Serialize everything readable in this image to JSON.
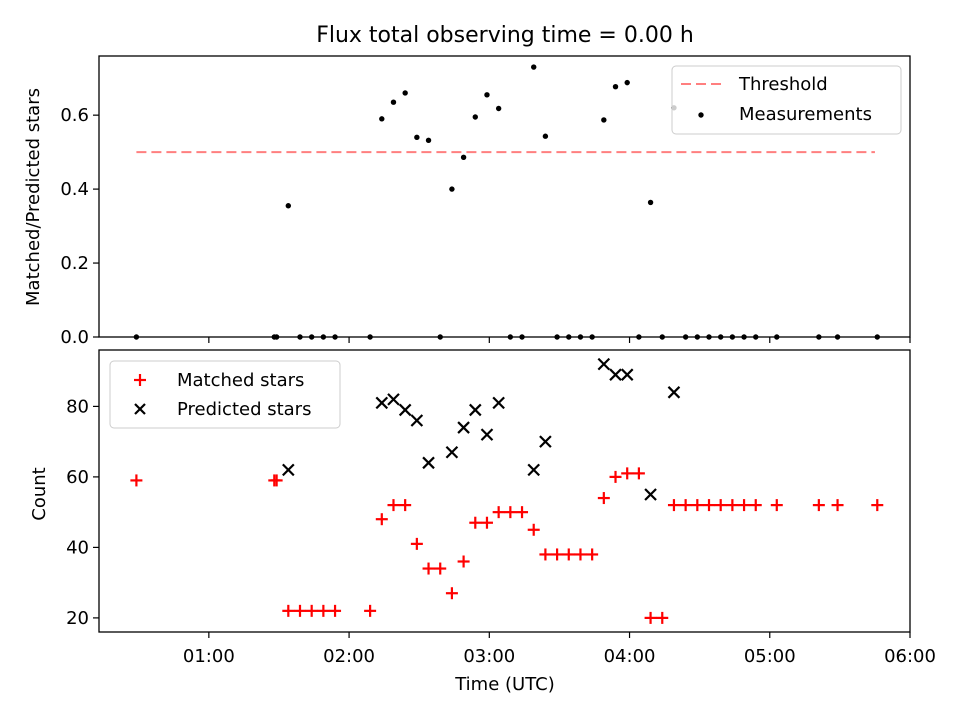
{
  "chart_data": [
    {
      "type": "scatter",
      "title": "Flux total observing time = 0.00 h",
      "ylabel": "Matched/Predicted stars",
      "xlabel": "",
      "ylim": [
        0,
        0.76
      ],
      "yticks": [
        "0.0",
        "0.2",
        "0.4",
        "0.6"
      ],
      "legend": {
        "placement": "top-right",
        "entries": [
          "Threshold",
          "Measurements"
        ]
      },
      "threshold": {
        "name": "Threshold",
        "y": 0.5,
        "x_start": "00:29",
        "x_end": "05:45",
        "color": "#ff7f7f"
      },
      "series": [
        {
          "name": "Measurements",
          "color": "#000000",
          "marker": "dot",
          "points": [
            [
              "00:29",
              0
            ],
            [
              "01:28",
              0
            ],
            [
              "01:29",
              0
            ],
            [
              "01:34",
              0.355
            ],
            [
              "01:39",
              0
            ],
            [
              "01:44",
              0
            ],
            [
              "01:49",
              0
            ],
            [
              "01:54",
              0
            ],
            [
              "02:09",
              0
            ],
            [
              "02:14",
              0.59
            ],
            [
              "02:19",
              0.635
            ],
            [
              "02:24",
              0.66
            ],
            [
              "02:29",
              0.54
            ],
            [
              "02:34",
              0.532
            ],
            [
              "02:39",
              0
            ],
            [
              "02:44",
              0.4
            ],
            [
              "02:49",
              0.486
            ],
            [
              "02:54",
              0.595
            ],
            [
              "02:59",
              0.655
            ],
            [
              "03:04",
              0.618
            ],
            [
              "03:09",
              0
            ],
            [
              "03:14",
              0
            ],
            [
              "03:19",
              0.73
            ],
            [
              "03:24",
              0.543
            ],
            [
              "03:29",
              0
            ],
            [
              "03:34",
              0
            ],
            [
              "03:39",
              0
            ],
            [
              "03:44",
              0
            ],
            [
              "03:49",
              0.587
            ],
            [
              "03:54",
              0.677
            ],
            [
              "03:59",
              0.688
            ],
            [
              "04:04",
              0
            ],
            [
              "04:09",
              0.364
            ],
            [
              "04:14",
              0
            ],
            [
              "04:19",
              0.62
            ],
            [
              "04:24",
              0
            ],
            [
              "04:29",
              0
            ],
            [
              "04:34",
              0
            ],
            [
              "04:39",
              0
            ],
            [
              "04:44",
              0
            ],
            [
              "04:49",
              0
            ],
            [
              "04:54",
              0
            ],
            [
              "05:03",
              0
            ],
            [
              "05:21",
              0
            ],
            [
              "05:29",
              0
            ],
            [
              "05:46",
              0
            ]
          ]
        }
      ]
    },
    {
      "type": "scatter",
      "title": "",
      "xlabel": "Time (UTC)",
      "ylabel": "Count",
      "xlim": [
        "00:13",
        "06:00"
      ],
      "xticks": [
        "01:00",
        "02:00",
        "03:00",
        "04:00",
        "05:00",
        "06:00"
      ],
      "ylim": [
        16,
        96
      ],
      "yticks": [
        "20",
        "40",
        "60",
        "80"
      ],
      "legend": {
        "placement": "top-left",
        "entries": [
          "Matched stars",
          "Predicted stars"
        ]
      },
      "series": [
        {
          "name": "Matched stars",
          "color": "#ff0000",
          "marker": "plus",
          "points": [
            [
              "00:29",
              59
            ],
            [
              "01:28",
              59
            ],
            [
              "01:29",
              59
            ],
            [
              "01:34",
              22
            ],
            [
              "01:39",
              22
            ],
            [
              "01:44",
              22
            ],
            [
              "01:49",
              22
            ],
            [
              "01:54",
              22
            ],
            [
              "02:09",
              22
            ],
            [
              "02:14",
              48
            ],
            [
              "02:19",
              52
            ],
            [
              "02:24",
              52
            ],
            [
              "02:29",
              41
            ],
            [
              "02:34",
              34
            ],
            [
              "02:39",
              34
            ],
            [
              "02:44",
              27
            ],
            [
              "02:49",
              36
            ],
            [
              "02:54",
              47
            ],
            [
              "02:59",
              47
            ],
            [
              "03:04",
              50
            ],
            [
              "03:09",
              50
            ],
            [
              "03:14",
              50
            ],
            [
              "03:19",
              45
            ],
            [
              "03:24",
              38
            ],
            [
              "03:29",
              38
            ],
            [
              "03:34",
              38
            ],
            [
              "03:39",
              38
            ],
            [
              "03:44",
              38
            ],
            [
              "03:49",
              54
            ],
            [
              "03:54",
              60
            ],
            [
              "03:59",
              61
            ],
            [
              "04:04",
              61
            ],
            [
              "04:09",
              20
            ],
            [
              "04:14",
              20
            ],
            [
              "04:19",
              52
            ],
            [
              "04:24",
              52
            ],
            [
              "04:29",
              52
            ],
            [
              "04:34",
              52
            ],
            [
              "04:39",
              52
            ],
            [
              "04:44",
              52
            ],
            [
              "04:49",
              52
            ],
            [
              "04:54",
              52
            ],
            [
              "05:03",
              52
            ],
            [
              "05:21",
              52
            ],
            [
              "05:29",
              52
            ],
            [
              "05:46",
              52
            ]
          ]
        },
        {
          "name": "Predicted stars",
          "color": "#000000",
          "marker": "x",
          "points": [
            [
              "01:34",
              62
            ],
            [
              "02:14",
              81
            ],
            [
              "02:19",
              82
            ],
            [
              "02:24",
              79
            ],
            [
              "02:29",
              76
            ],
            [
              "02:34",
              64
            ],
            [
              "02:44",
              67
            ],
            [
              "02:49",
              74
            ],
            [
              "02:54",
              79
            ],
            [
              "02:59",
              72
            ],
            [
              "03:04",
              81
            ],
            [
              "03:19",
              62
            ],
            [
              "03:24",
              70
            ],
            [
              "03:49",
              92
            ],
            [
              "03:54",
              89
            ],
            [
              "03:59",
              89
            ],
            [
              "04:09",
              55
            ],
            [
              "04:19",
              84
            ]
          ]
        }
      ]
    }
  ]
}
